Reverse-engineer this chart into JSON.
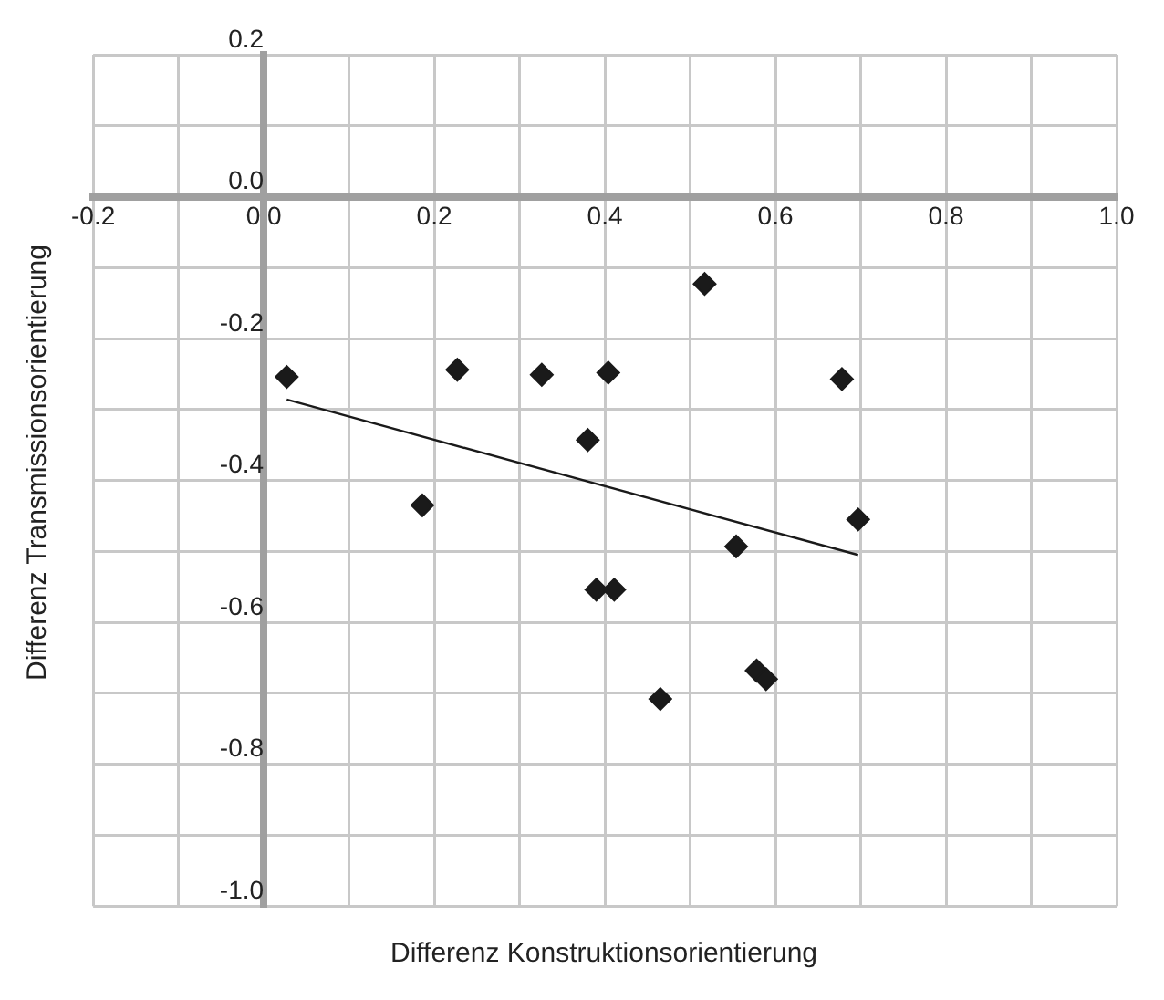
{
  "chart_data": {
    "type": "scatter",
    "xlabel": "Differenz Konstruktionsorientierung",
    "ylabel": "Differenz Transmissionsorientierung",
    "xlim": [
      -0.2,
      1.0
    ],
    "ylim": [
      -1.0,
      0.2
    ],
    "xticks": [
      -0.2,
      {
        "value": -0.1,
        "label": null
      },
      {
        "value": 0,
        "label": "0.0"
      },
      {
        "value": 0.1,
        "label": null
      },
      0.2,
      {
        "value": 0.3,
        "label": null
      },
      0.4,
      {
        "value": 0.5,
        "label": null
      },
      0.6,
      {
        "value": 0.7,
        "label": null
      },
      0.8,
      {
        "value": 0.9,
        "label": null
      },
      {
        "value": 1,
        "label": "1.0"
      }
    ],
    "yticks": [
      {
        "value": -1,
        "label": "-1.0"
      },
      {
        "value": -0.9,
        "label": null
      },
      -0.8,
      {
        "value": -0.7,
        "label": null
      },
      -0.6,
      {
        "value": -0.5,
        "label": null
      },
      -0.4,
      {
        "value": -0.3,
        "label": null
      },
      -0.2,
      {
        "value": -0.1,
        "label": null
      },
      {
        "value": 0,
        "label": "0.0"
      },
      {
        "value": 0.1,
        "label": null
      },
      0.2
    ],
    "grid": true,
    "marker": "diamond",
    "series": [
      {
        "type": "scatter",
        "color": "#1a1a1a",
        "x": [
          0.027,
          0.227,
          0.326,
          0.404,
          0.517,
          0.678,
          0.38,
          0.186,
          0.697,
          0.554,
          0.39,
          0.411,
          0.465,
          0.578,
          0.589
        ],
        "values": [
          -0.254,
          -0.244,
          -0.251,
          -0.248,
          -0.123,
          -0.257,
          -0.343,
          -0.435,
          -0.455,
          -0.493,
          -0.554,
          -0.554,
          -0.708,
          -0.668,
          -0.68
        ]
      },
      {
        "type": "line",
        "color": "#1a1a1a",
        "marker": "none",
        "x": [
          0.027,
          0.697
        ],
        "values": [
          -0.286,
          -0.505
        ]
      }
    ]
  }
}
